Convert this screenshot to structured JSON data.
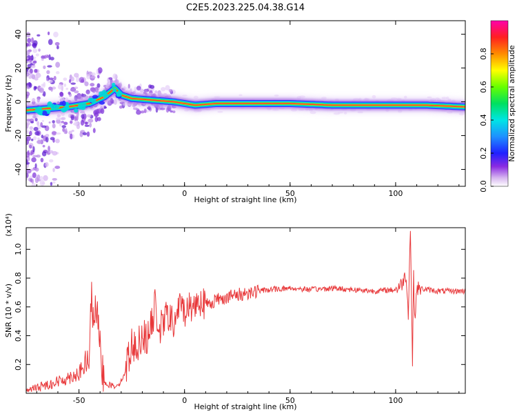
{
  "title": "C2E5.2023.225.04.38.G14",
  "chart_data": [
    {
      "type": "heatmap",
      "title": "C2E5.2023.225.04.38.G14",
      "xlabel": "Height of straight line (km)",
      "ylabel": "Frequency (Hz)",
      "xlim": [
        -75,
        133
      ],
      "ylim": [
        -50,
        48
      ],
      "xticks": [
        "-50",
        "0",
        "50",
        "100"
      ],
      "yticks": [
        "-40",
        "-20",
        "0",
        "20",
        "40"
      ],
      "colorbar": {
        "label": "Normalized spectral amplitude",
        "range": [
          0,
          1
        ],
        "ticks": [
          "0.0",
          "0.2",
          "0.4",
          "0.6",
          "0.8"
        ]
      },
      "ridge": {
        "x": [
          -75,
          -65,
          -55,
          -45,
          -38,
          -33,
          -30,
          -25,
          -15,
          -5,
          5,
          15,
          30,
          50,
          70,
          90,
          105,
          115,
          133
        ],
        "freq": [
          -5,
          -4,
          -3,
          -1,
          3,
          8,
          4,
          2,
          1,
          0,
          -2,
          -1,
          -1,
          -1,
          -2,
          -2,
          -2,
          -2,
          -3
        ]
      },
      "grid": false
    },
    {
      "type": "line",
      "xlabel": "Height of straight line (km)",
      "ylabel": "SNR (10 * v/v)",
      "y_multiplier": "(x10⁴)",
      "xlim": [
        -75,
        133
      ],
      "ylim": [
        0,
        1.15
      ],
      "xticks": [
        "-50",
        "0",
        "50",
        "100"
      ],
      "yticks": [
        "0.2",
        "0.4",
        "0.6",
        "0.8",
        "1.0"
      ],
      "color": "#e8383a",
      "series": [
        {
          "x": [
            -75,
            -70,
            -65,
            -60,
            -55,
            -50,
            -47,
            -45,
            -44,
            -43,
            -42,
            -41,
            -40,
            -39,
            -38,
            -36,
            -33,
            -30,
            -28,
            -27,
            -26,
            -25,
            -23,
            -20,
            -18,
            -15,
            -14,
            -12,
            -10,
            -8,
            -5,
            -3,
            0,
            3,
            5,
            8,
            10,
            15,
            20,
            25,
            30,
            35,
            40,
            50,
            60,
            70,
            80,
            90,
            100,
            103,
            104,
            105,
            106,
            107,
            108,
            108.5,
            109,
            110,
            115,
            120,
            125,
            133
          ],
          "y": [
            0.02,
            0.04,
            0.06,
            0.08,
            0.11,
            0.14,
            0.19,
            0.26,
            0.74,
            0.38,
            0.65,
            0.45,
            0.3,
            0.18,
            0.08,
            0.06,
            0.05,
            0.08,
            0.16,
            0.22,
            0.28,
            0.35,
            0.3,
            0.42,
            0.37,
            0.5,
            0.62,
            0.44,
            0.48,
            0.56,
            0.46,
            0.6,
            0.58,
            0.6,
            0.62,
            0.66,
            0.61,
            0.65,
            0.67,
            0.68,
            0.7,
            0.71,
            0.72,
            0.73,
            0.72,
            0.73,
            0.72,
            0.71,
            0.72,
            0.76,
            0.8,
            0.82,
            0.56,
            1.15,
            0.2,
            0.86,
            0.5,
            0.73,
            0.72,
            0.71,
            0.71,
            0.71
          ]
        }
      ]
    }
  ]
}
